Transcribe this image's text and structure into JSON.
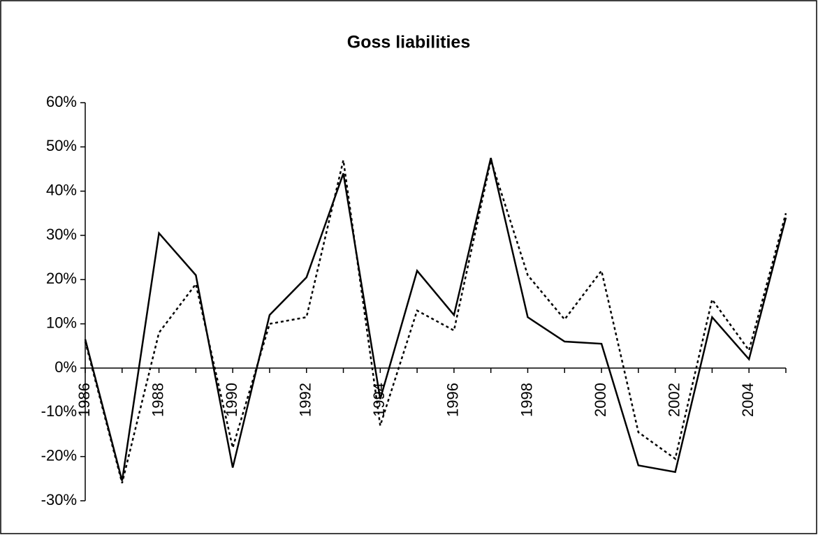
{
  "chart_data": {
    "type": "line",
    "title": "Goss liabilities",
    "categories": [
      "1986",
      null,
      "1988",
      null,
      "1990",
      null,
      "1992",
      null,
      "1994",
      null,
      "1996",
      null,
      "1998",
      null,
      "2000",
      null,
      "2002",
      null,
      "2004",
      null
    ],
    "series": [
      {
        "color": "#000000",
        "style": "solid",
        "values": [
          6.5,
          -25.5,
          30.5,
          21,
          -22.5,
          12,
          20.5,
          44,
          -7,
          22,
          12,
          47.5,
          11.5,
          6,
          5.5,
          -22,
          -23.5,
          11.5,
          2,
          34
        ]
      },
      {
        "color": "#000000",
        "style": "dotted",
        "values": [
          6,
          -26,
          8,
          19,
          -18,
          10,
          11.5,
          47,
          -13,
          13,
          8.5,
          47,
          21,
          11,
          22,
          -14.5,
          -20.5,
          15.5,
          4,
          35
        ]
      }
    ],
    "ylim": [
      -30,
      60
    ],
    "yticks": [
      {
        "value": -30,
        "label": "-30%"
      },
      {
        "value": -20,
        "label": "-20%"
      },
      {
        "value": -10,
        "label": "-10%"
      },
      {
        "value": 0,
        "label": "0%"
      },
      {
        "value": 10,
        "label": "10%"
      },
      {
        "value": 20,
        "label": "20%"
      },
      {
        "value": 30,
        "label": "30%"
      },
      {
        "value": 40,
        "label": "40%"
      },
      {
        "value": 50,
        "label": "50%"
      },
      {
        "value": 60,
        "label": "60%"
      }
    ],
    "grid": false
  }
}
